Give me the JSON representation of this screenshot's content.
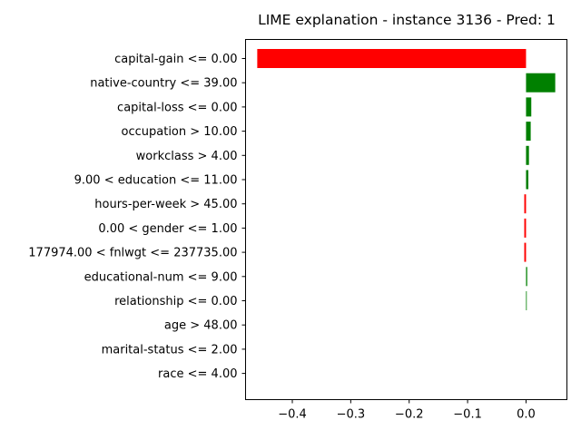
{
  "chart_data": {
    "type": "bar",
    "orientation": "horizontal",
    "title": "LIME explanation - instance 3136 - Pred: 1",
    "xlabel": "",
    "ylabel": "",
    "xlim": [
      -0.48,
      0.07
    ],
    "xticks": [
      -0.4,
      -0.3,
      -0.2,
      -0.1,
      0.0
    ],
    "xtick_labels": [
      "−0.4",
      "−0.3",
      "−0.2",
      "−0.1",
      "0.0"
    ],
    "grid": false,
    "legend": "none",
    "colors": {
      "positive": "#008000",
      "negative": "#ff0000"
    },
    "categories": [
      "capital-gain <= 0.00",
      "native-country <= 39.00",
      "capital-loss <= 0.00",
      "occupation > 10.00",
      "workclass > 4.00",
      "9.00 < education <= 11.00",
      "hours-per-week > 45.00",
      "0.00 < gender <= 1.00",
      "177974.00 < fnlwgt <= 237735.00",
      "educational-num <= 9.00",
      "relationship <= 0.00",
      "age > 48.00",
      "marital-status <= 2.00",
      "race <= 4.00"
    ],
    "values": [
      -0.46,
      0.05,
      0.009,
      0.008,
      0.005,
      0.004,
      -0.003,
      -0.003,
      -0.003,
      0.002,
      0.001,
      0.0,
      0.0,
      0.0
    ]
  }
}
